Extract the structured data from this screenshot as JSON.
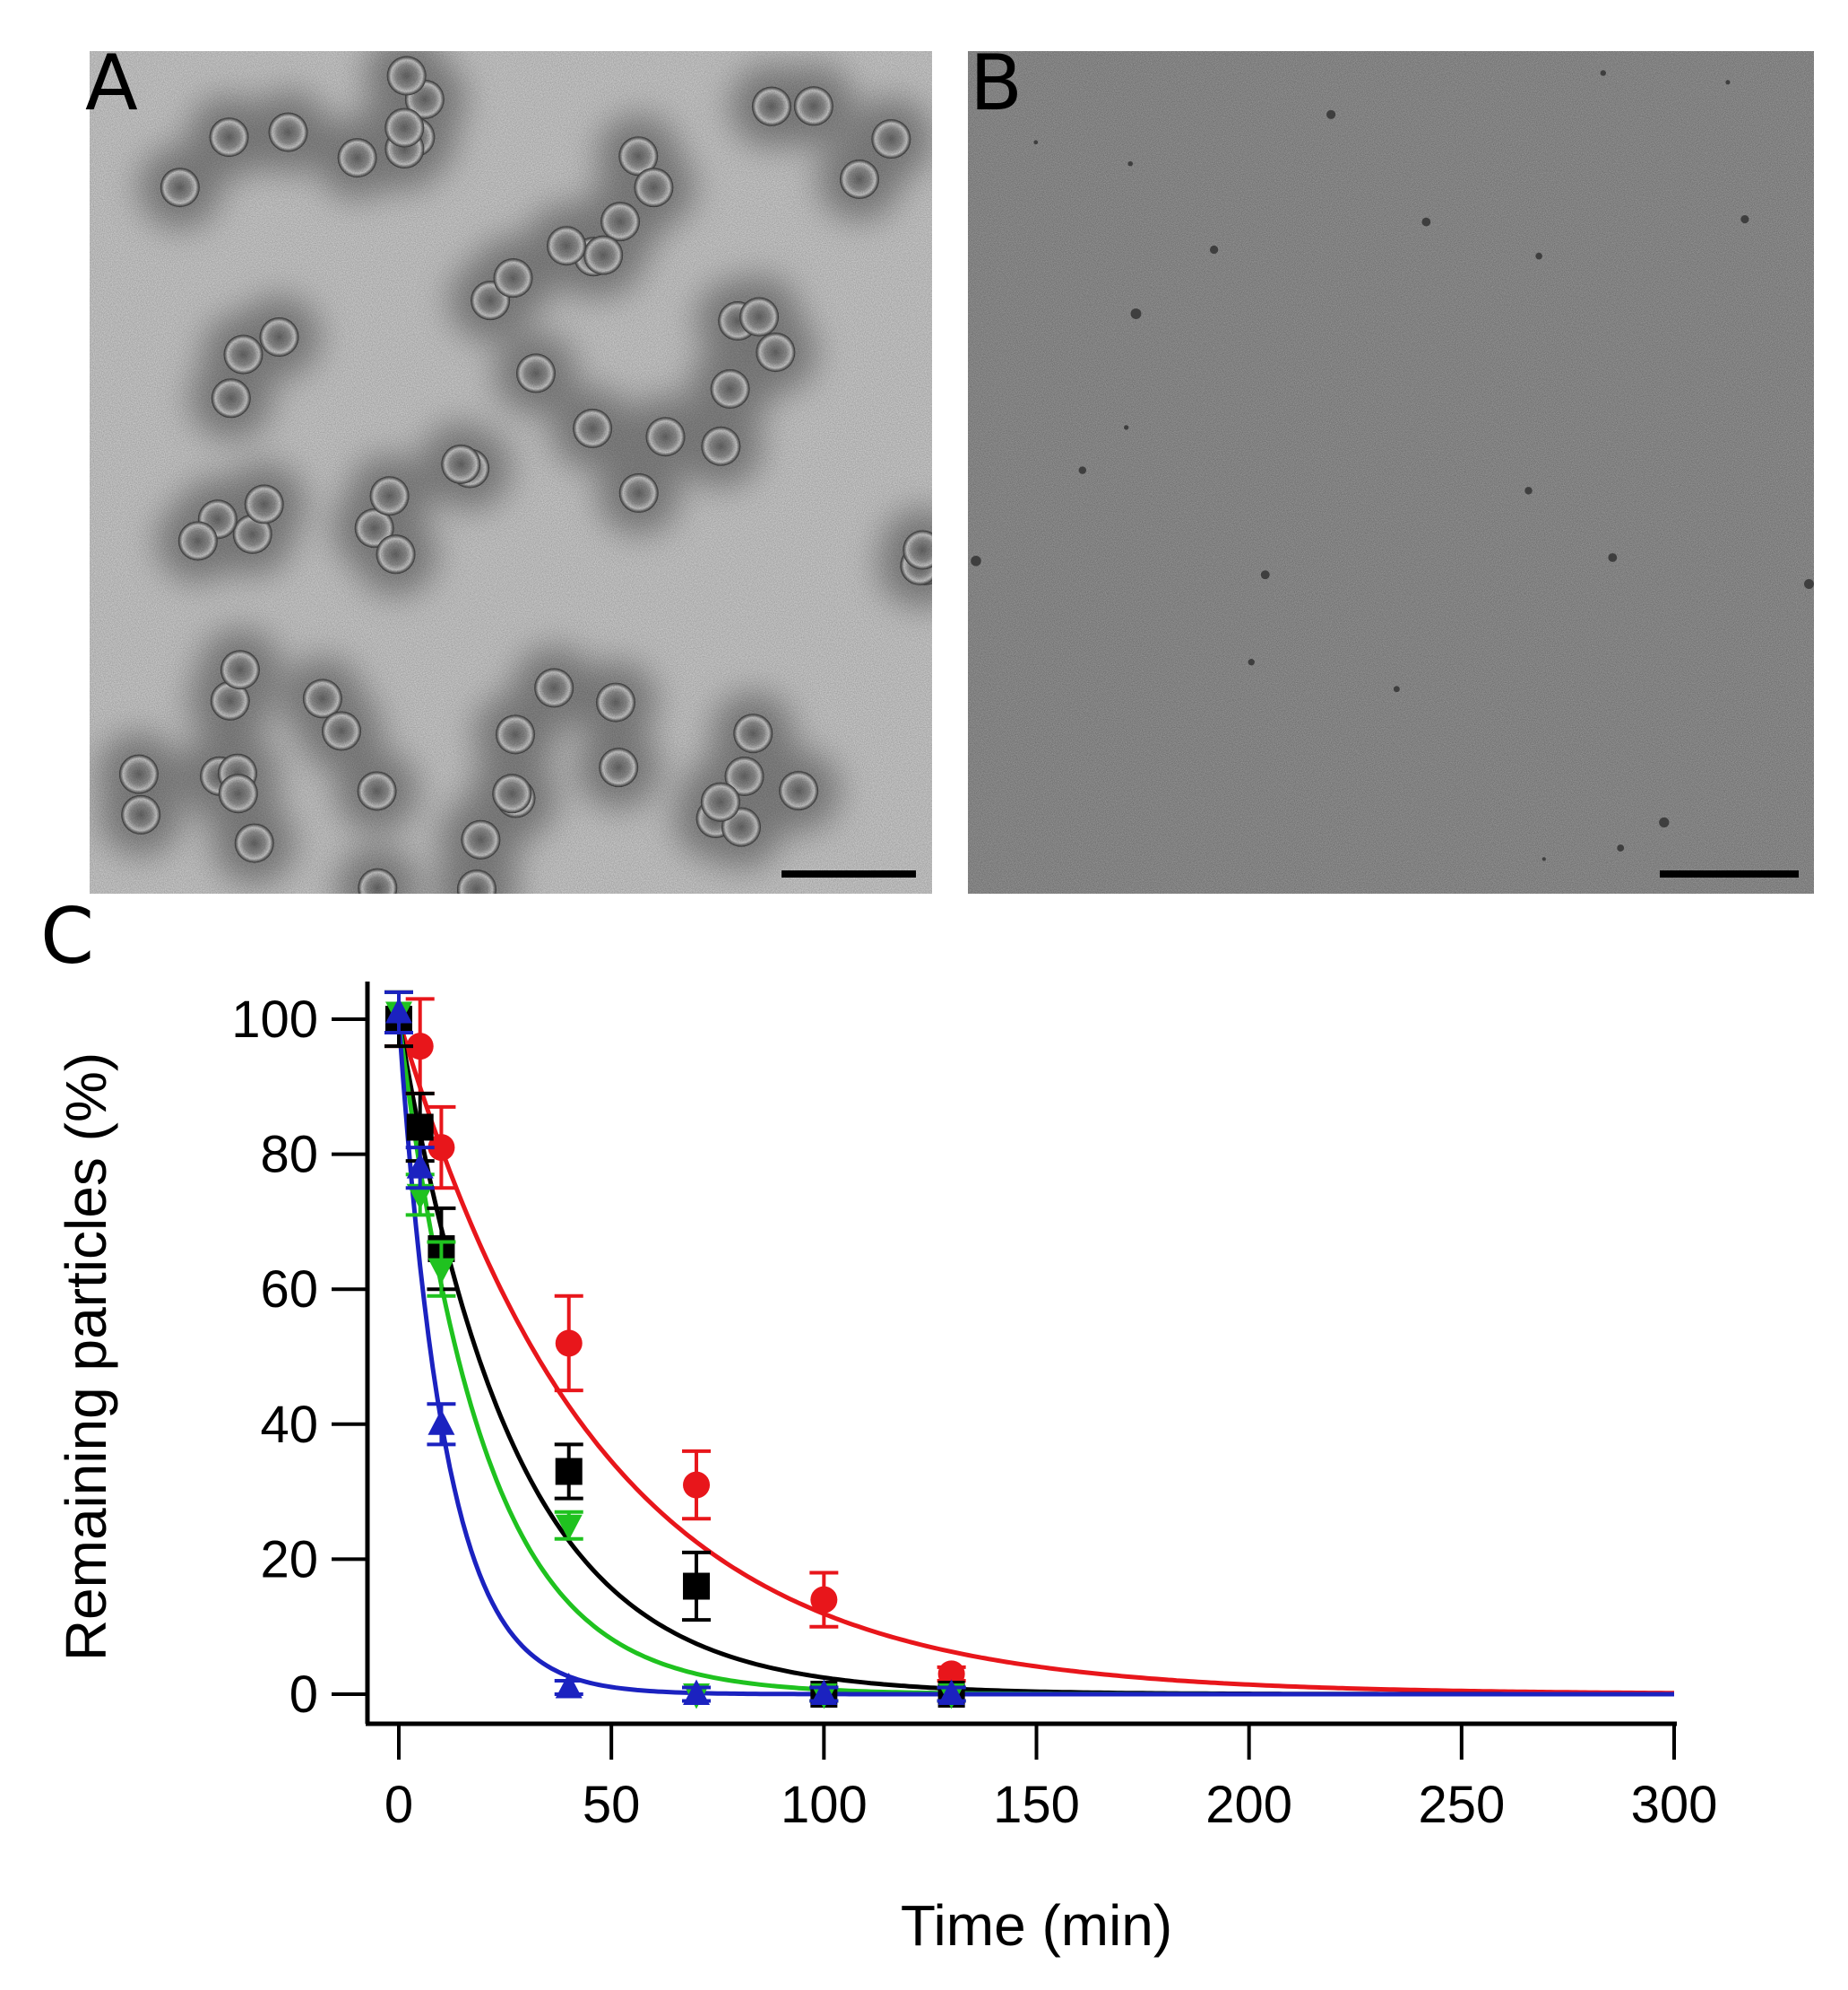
{
  "panels": {
    "a_label": "A",
    "b_label": "B",
    "c_label": "C"
  },
  "colors": {
    "red": "#e8161b",
    "black": "#000000",
    "green": "#1fc21f",
    "blue": "#1b22c0",
    "micrograph_a_bg": "#d9d9d9",
    "micrograph_b_bg": "#a6a6a6"
  },
  "chart_data": {
    "type": "scatter",
    "xlabel": "Time (min)",
    "ylabel": "Remaining particles (%)",
    "xlim": [
      -7,
      302
    ],
    "ylim": [
      -3,
      105
    ],
    "xticks": [
      0,
      50,
      100,
      150,
      200,
      250,
      300
    ],
    "yticks": [
      0,
      20,
      40,
      60,
      80,
      100
    ],
    "grid": false,
    "legend": "none",
    "series": [
      {
        "color": "#e8161b",
        "marker": "circle",
        "x": [
          0,
          5,
          10,
          40,
          70,
          100,
          130
        ],
        "y": [
          100,
          96,
          81,
          52,
          31,
          14,
          3
        ],
        "err": [
          4,
          7,
          6,
          7,
          5,
          4,
          1
        ],
        "fit_tau": 47
      },
      {
        "color": "#000000",
        "marker": "square",
        "x": [
          0,
          5,
          10,
          40,
          70,
          100,
          130
        ],
        "y": [
          100,
          84,
          66,
          33,
          16,
          0,
          0
        ],
        "err": [
          4,
          5,
          6,
          4,
          5,
          1,
          1
        ],
        "fit_tau": 27
      },
      {
        "color": "#1fc21f",
        "marker": "triangle-down",
        "x": [
          0,
          5,
          10,
          40,
          70,
          100,
          130
        ],
        "y": [
          101,
          74,
          63,
          25,
          0,
          0,
          0
        ],
        "err": [
          3,
          3,
          4,
          2,
          1,
          1,
          1
        ],
        "fit_tau": 20
      },
      {
        "color": "#1b22c0",
        "marker": "triangle-up",
        "x": [
          0,
          5,
          10,
          40,
          70,
          100,
          130
        ],
        "y": [
          101,
          78,
          40,
          1,
          0,
          0,
          0
        ],
        "err": [
          3,
          3,
          3,
          1,
          1,
          1,
          1
        ],
        "fit_tau": 11
      }
    ]
  }
}
